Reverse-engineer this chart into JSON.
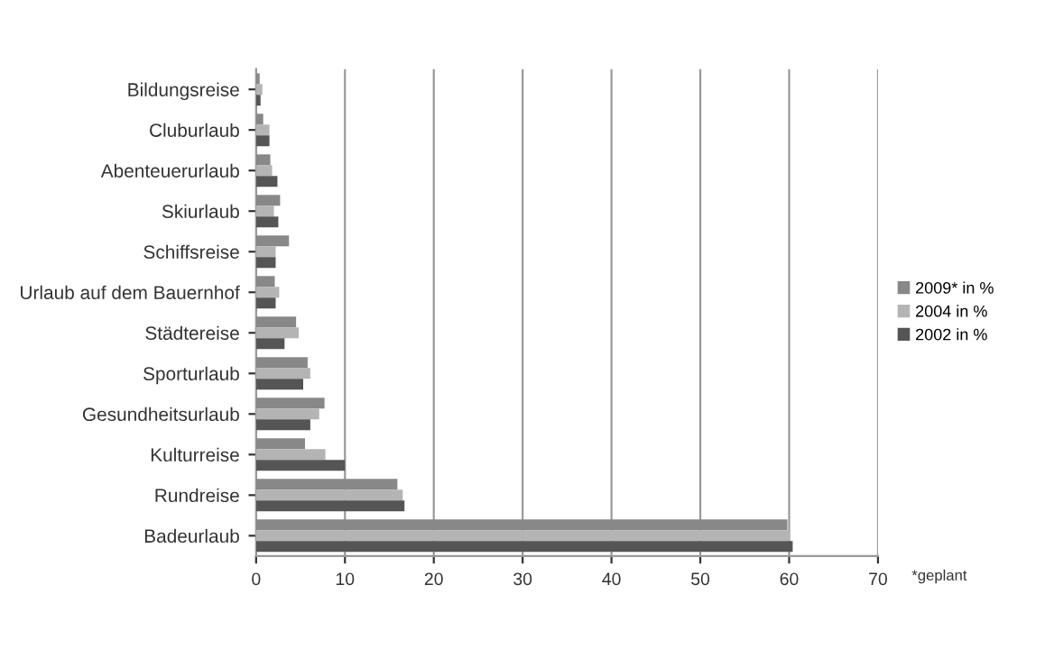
{
  "chart_data": {
    "type": "bar",
    "orientation": "horizontal",
    "categories": [
      "Bildungsreise",
      "Cluburlaub",
      "Abenteuerurlaub",
      "Skiurlaub",
      "Schiffsreise",
      "Urlaub auf dem Bauernhof",
      "Städtereise",
      "Sporturlaub",
      "Gesundheitsurlaub",
      "Kulturreise",
      "Rundreise",
      "Badeurlaub"
    ],
    "series": [
      {
        "name": "2009* in %",
        "color": "#888888",
        "values": [
          0.4,
          0.8,
          1.6,
          2.7,
          3.7,
          2.1,
          4.5,
          5.8,
          7.7,
          5.5,
          15.9,
          59.8
        ]
      },
      {
        "name": "2004 in %",
        "color": "#b4b4b4",
        "values": [
          0.7,
          1.5,
          1.8,
          2.0,
          2.2,
          2.6,
          4.8,
          6.1,
          7.1,
          7.8,
          16.5,
          60.1
        ]
      },
      {
        "name": "2002 in %",
        "color": "#555555",
        "values": [
          0.5,
          1.5,
          2.4,
          2.5,
          2.2,
          2.2,
          3.2,
          5.3,
          6.1,
          10.0,
          16.7,
          60.4
        ]
      }
    ],
    "xlim": [
      0,
      70
    ],
    "xticks": [
      0,
      10,
      20,
      30,
      40,
      50,
      60,
      70
    ],
    "grid": "x",
    "legend": "right",
    "annotations": [
      "*geplant"
    ]
  }
}
